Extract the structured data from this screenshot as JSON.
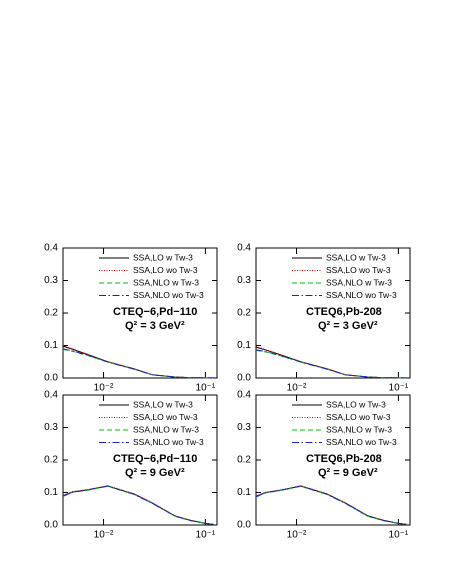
{
  "chart_data": [
    {
      "type": "line",
      "log_x": true,
      "annotations": [
        "CTEQ−6,Pd−110",
        "Q² = 3 GeV²"
      ],
      "x": [
        0.004,
        0.005,
        0.007,
        0.011,
        0.02,
        0.03,
        0.05,
        0.07,
        0.1,
        0.12
      ],
      "xlim": [
        0.004,
        0.13
      ],
      "xticks": [
        {
          "value": 0.01,
          "label": "10⁻²"
        },
        {
          "value": 0.1,
          "label": "10⁻¹"
        }
      ],
      "ylim": [
        0,
        0.4
      ],
      "yticks": [
        {
          "value": 0,
          "label": "0.0"
        },
        0.1,
        0.2,
        0.3,
        0.4
      ],
      "series": [
        {
          "name": "SSA,LO w Tw-3",
          "color": "#000000",
          "dash": "solid",
          "values": [
            0.098,
            0.088,
            0.072,
            0.05,
            0.028,
            0.01,
            0.003,
            0.001,
            0.0005,
            0.0003
          ]
        },
        {
          "name": "SSA,LO wo Tw-3",
          "color": "#d00000",
          "dash": "dotted",
          "values": [
            0.1,
            0.089,
            0.073,
            0.05,
            0.028,
            0.01,
            0.003,
            0.001,
            0.0005,
            0.0003
          ]
        },
        {
          "name": "SSA,NLO w Tw-3",
          "color": "#00c000",
          "dash": "dashed",
          "values": [
            0.088,
            0.082,
            0.069,
            0.049,
            0.027,
            0.01,
            0.003,
            0.001,
            0.0005,
            0.0003
          ]
        },
        {
          "name": "SSA,NLO wo Tw-3",
          "color": "#2020d0",
          "dash": "dashdot",
          "values": [
            0.09,
            0.083,
            0.07,
            0.049,
            0.027,
            0.01,
            0.003,
            0.001,
            0.0005,
            0.0003
          ]
        }
      ]
    },
    {
      "type": "line",
      "log_x": true,
      "annotations": [
        "CTEQ6,Pb-208",
        "Q² = 3 GeV²"
      ],
      "x": [
        0.004,
        0.005,
        0.007,
        0.011,
        0.02,
        0.03,
        0.05,
        0.07,
        0.1,
        0.12
      ],
      "xlim": [
        0.004,
        0.13
      ],
      "xticks": [
        {
          "value": 0.01,
          "label": "10⁻²"
        },
        {
          "value": 0.1,
          "label": "10⁻¹"
        }
      ],
      "ylim": [
        0,
        0.4
      ],
      "yticks": [
        {
          "value": 0,
          "label": "0.0"
        },
        0.1,
        0.2,
        0.3,
        0.4
      ],
      "series": [
        {
          "name": "SSA,LO w Tw-3",
          "color": "#000000",
          "dash": "solid",
          "values": [
            0.095,
            0.086,
            0.071,
            0.05,
            0.028,
            0.01,
            0.003,
            0.001,
            0.0005,
            0.0003
          ]
        },
        {
          "name": "SSA,LO wo Tw-3",
          "color": "#d00000",
          "dash": "dotted",
          "values": [
            0.097,
            0.087,
            0.072,
            0.05,
            0.028,
            0.01,
            0.003,
            0.001,
            0.0005,
            0.0003
          ]
        },
        {
          "name": "SSA,NLO w Tw-3",
          "color": "#00c000",
          "dash": "dashed",
          "values": [
            0.085,
            0.08,
            0.068,
            0.049,
            0.027,
            0.01,
            0.003,
            0.001,
            0.0005,
            0.0003
          ]
        },
        {
          "name": "SSA,NLO wo Tw-3",
          "color": "#2020d0",
          "dash": "dashdot",
          "values": [
            0.087,
            0.081,
            0.069,
            0.049,
            0.027,
            0.01,
            0.003,
            0.001,
            0.0005,
            0.0003
          ]
        }
      ]
    },
    {
      "type": "line",
      "log_x": true,
      "annotations": [
        "CTEQ−6,Pd−110",
        "Q² = 9 GeV²"
      ],
      "x": [
        0.004,
        0.005,
        0.007,
        0.011,
        0.02,
        0.03,
        0.05,
        0.07,
        0.1,
        0.12
      ],
      "xlim": [
        0.004,
        0.13
      ],
      "xticks": [
        {
          "value": 0.01,
          "label": "10⁻²"
        },
        {
          "value": 0.1,
          "label": "10⁻¹"
        }
      ],
      "ylim": [
        0,
        0.4
      ],
      "yticks": [
        {
          "value": 0,
          "label": "0.0"
        },
        0.1,
        0.2,
        0.3,
        0.4
      ],
      "series": [
        {
          "name": "SSA,LO w Tw-3",
          "color": "#000000",
          "dash": "solid",
          "values": [
            0.09,
            0.102,
            0.108,
            0.12,
            0.095,
            0.068,
            0.028,
            0.015,
            0.005,
            0.002
          ]
        },
        {
          "name": "SSA,LO wo Tw-3",
          "color": "#d00000",
          "dash": "dotted",
          "values": [
            0.091,
            0.103,
            0.109,
            0.121,
            0.096,
            0.069,
            0.029,
            0.015,
            0.005,
            0.002
          ]
        },
        {
          "name": "SSA,NLO w Tw-3",
          "color": "#00c000",
          "dash": "dashed",
          "values": [
            0.088,
            0.101,
            0.107,
            0.119,
            0.094,
            0.067,
            0.027,
            0.014,
            0.005,
            0.002
          ]
        },
        {
          "name": "SSA,NLO wo Tw-3",
          "color": "#2020d0",
          "dash": "dashdot",
          "values": [
            0.089,
            0.101,
            0.108,
            0.12,
            0.094,
            0.067,
            0.028,
            0.014,
            0.005,
            0.002
          ]
        }
      ]
    },
    {
      "type": "line",
      "log_x": true,
      "annotations": [
        "CTEQ6,Pb-208",
        "Q² = 9 GeV²"
      ],
      "x": [
        0.004,
        0.005,
        0.007,
        0.011,
        0.02,
        0.03,
        0.05,
        0.07,
        0.1,
        0.12
      ],
      "xlim": [
        0.004,
        0.13
      ],
      "xticks": [
        {
          "value": 0.01,
          "label": "10⁻²"
        },
        {
          "value": 0.1,
          "label": "10⁻¹"
        }
      ],
      "ylim": [
        0,
        0.4
      ],
      "yticks": [
        {
          "value": 0,
          "label": "0.0"
        },
        0.1,
        0.2,
        0.3,
        0.4
      ],
      "series": [
        {
          "name": "SSA,LO w Tw-3",
          "color": "#000000",
          "dash": "solid",
          "values": [
            0.088,
            0.1,
            0.107,
            0.12,
            0.095,
            0.068,
            0.028,
            0.015,
            0.005,
            0.002
          ]
        },
        {
          "name": "SSA,LO wo Tw-3",
          "color": "#d00000",
          "dash": "dotted",
          "values": [
            0.089,
            0.101,
            0.108,
            0.121,
            0.096,
            0.069,
            0.029,
            0.015,
            0.005,
            0.002
          ]
        },
        {
          "name": "SSA,NLO w Tw-3",
          "color": "#00c000",
          "dash": "dashed",
          "values": [
            0.086,
            0.099,
            0.106,
            0.119,
            0.094,
            0.067,
            0.027,
            0.014,
            0.005,
            0.002
          ]
        },
        {
          "name": "SSA,NLO wo Tw-3",
          "color": "#2020d0",
          "dash": "dashdot",
          "values": [
            0.087,
            0.1,
            0.107,
            0.12,
            0.094,
            0.067,
            0.028,
            0.014,
            0.005,
            0.002
          ]
        }
      ]
    }
  ]
}
